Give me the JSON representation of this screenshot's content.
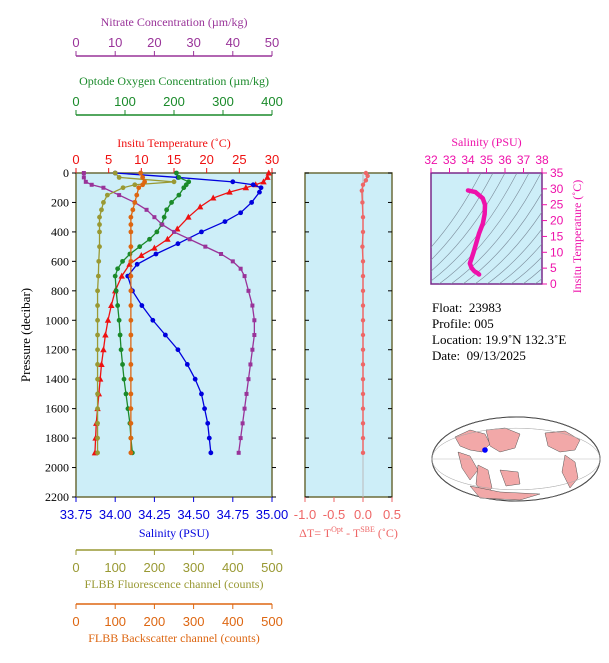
{
  "chart_data": {
    "type": "line",
    "y_axis": {
      "label": "Pressure (decibar)",
      "ylim": [
        2200,
        0
      ],
      "ticks": [
        0,
        200,
        400,
        600,
        800,
        1000,
        1200,
        1400,
        1600,
        1800,
        2000,
        2200
      ]
    },
    "axes": {
      "nitrate": {
        "label": "Nitrate Concentration (µm/kg)",
        "range": [
          0,
          50
        ],
        "ticks": [
          0,
          10,
          20,
          30,
          40,
          50
        ],
        "color": "#993399"
      },
      "oxygen": {
        "label": "Optode Oxygen Concentration (µm/kg)",
        "range": [
          0,
          400
        ],
        "ticks": [
          0,
          100,
          200,
          300,
          400
        ],
        "color": "#1a8a2a"
      },
      "temperature": {
        "label": "Insitu Temperature (˚C)",
        "range": [
          0,
          30
        ],
        "ticks": [
          0,
          5,
          10,
          15,
          20,
          25,
          30
        ],
        "color": "#ee1111"
      },
      "salinity": {
        "label": "Salinity (PSU)",
        "range": [
          33.75,
          35.0
        ],
        "ticks": [
          "33.75",
          "34.00",
          "34.25",
          "34.50",
          "34.75",
          "35.00"
        ],
        "color": "#0000dd"
      },
      "fluorescence": {
        "label": "FLBB Fluorescence channel (counts)",
        "range": [
          0,
          500
        ],
        "ticks": [
          0,
          100,
          200,
          300,
          400,
          500
        ],
        "color": "#999933"
      },
      "backscatter": {
        "label": "FLBB Backscatter channel (counts)",
        "range": [
          0,
          500
        ],
        "ticks": [
          0,
          100,
          200,
          300,
          400,
          500
        ],
        "color": "#dd6611"
      }
    },
    "series": [
      {
        "key": "temperature",
        "marker": "triangle",
        "points": [
          [
            29.5,
            0
          ],
          [
            29.3,
            30
          ],
          [
            28.7,
            60
          ],
          [
            27.5,
            80
          ],
          [
            26.0,
            100
          ],
          [
            23.5,
            130
          ],
          [
            21.0,
            170
          ],
          [
            19.0,
            230
          ],
          [
            17.2,
            300
          ],
          [
            15.5,
            380
          ],
          [
            14.0,
            450
          ],
          [
            12.0,
            510
          ],
          [
            10.0,
            560
          ],
          [
            8.2,
            620
          ],
          [
            7.0,
            700
          ],
          [
            6.0,
            800
          ],
          [
            5.4,
            900
          ],
          [
            4.9,
            1000
          ],
          [
            4.5,
            1100
          ],
          [
            4.2,
            1200
          ],
          [
            3.9,
            1300
          ],
          [
            3.7,
            1400
          ],
          [
            3.5,
            1500
          ],
          [
            3.3,
            1600
          ],
          [
            3.1,
            1700
          ],
          [
            3.0,
            1800
          ],
          [
            2.9,
            1900
          ]
        ]
      },
      {
        "key": "salinity",
        "marker": "circle",
        "points": [
          [
            34.0,
            0
          ],
          [
            34.4,
            30
          ],
          [
            34.75,
            60
          ],
          [
            34.88,
            80
          ],
          [
            34.93,
            100
          ],
          [
            34.92,
            130
          ],
          [
            34.87,
            200
          ],
          [
            34.8,
            270
          ],
          [
            34.7,
            330
          ],
          [
            34.55,
            400
          ],
          [
            34.4,
            480
          ],
          [
            34.26,
            550
          ],
          [
            34.14,
            620
          ],
          [
            34.08,
            700
          ],
          [
            34.11,
            800
          ],
          [
            34.17,
            900
          ],
          [
            34.24,
            1000
          ],
          [
            34.32,
            1100
          ],
          [
            34.4,
            1200
          ],
          [
            34.46,
            1300
          ],
          [
            34.51,
            1400
          ],
          [
            34.55,
            1500
          ],
          [
            34.57,
            1600
          ],
          [
            34.59,
            1700
          ],
          [
            34.6,
            1800
          ],
          [
            34.61,
            1900
          ]
        ]
      },
      {
        "key": "oxygen",
        "marker": "circle",
        "points": [
          [
            205,
            0
          ],
          [
            210,
            30
          ],
          [
            230,
            60
          ],
          [
            225,
            80
          ],
          [
            220,
            100
          ],
          [
            210,
            150
          ],
          [
            195,
            200
          ],
          [
            185,
            250
          ],
          [
            180,
            300
          ],
          [
            175,
            350
          ],
          [
            165,
            400
          ],
          [
            150,
            450
          ],
          [
            130,
            500
          ],
          [
            110,
            550
          ],
          [
            95,
            600
          ],
          [
            85,
            650
          ],
          [
            80,
            700
          ],
          [
            82,
            800
          ],
          [
            85,
            900
          ],
          [
            88,
            1000
          ],
          [
            90,
            1100
          ],
          [
            92,
            1200
          ],
          [
            95,
            1300
          ],
          [
            98,
            1400
          ],
          [
            102,
            1500
          ],
          [
            106,
            1600
          ],
          [
            110,
            1700
          ],
          [
            112,
            1800
          ],
          [
            115,
            1900
          ]
        ]
      },
      {
        "key": "nitrate",
        "marker": "square",
        "points": [
          [
            2,
            0
          ],
          [
            2,
            30
          ],
          [
            2.5,
            60
          ],
          [
            4,
            80
          ],
          [
            7,
            100
          ],
          [
            11,
            150
          ],
          [
            15,
            200
          ],
          [
            18,
            250
          ],
          [
            20,
            300
          ],
          [
            22,
            350
          ],
          [
            25,
            400
          ],
          [
            29,
            450
          ],
          [
            33,
            500
          ],
          [
            37,
            550
          ],
          [
            40,
            600
          ],
          [
            42,
            650
          ],
          [
            43,
            700
          ],
          [
            44,
            800
          ],
          [
            45,
            900
          ],
          [
            45.5,
            1000
          ],
          [
            45.5,
            1100
          ],
          [
            45,
            1200
          ],
          [
            44.5,
            1300
          ],
          [
            44,
            1400
          ],
          [
            43.5,
            1500
          ],
          [
            43,
            1600
          ],
          [
            42.5,
            1700
          ],
          [
            42,
            1800
          ],
          [
            41.5,
            1900
          ]
        ]
      },
      {
        "key": "fluorescence",
        "marker": "circle",
        "points": [
          [
            100,
            0
          ],
          [
            110,
            30
          ],
          [
            250,
            60
          ],
          [
            150,
            80
          ],
          [
            120,
            100
          ],
          [
            80,
            150
          ],
          [
            70,
            200
          ],
          [
            65,
            250
          ],
          [
            60,
            300
          ],
          [
            60,
            350
          ],
          [
            60,
            400
          ],
          [
            60,
            500
          ],
          [
            58,
            600
          ],
          [
            57,
            700
          ],
          [
            55,
            800
          ],
          [
            55,
            900
          ],
          [
            55,
            1000
          ],
          [
            55,
            1100
          ],
          [
            55,
            1200
          ],
          [
            55,
            1300
          ],
          [
            55,
            1400
          ],
          [
            55,
            1500
          ],
          [
            55,
            1600
          ],
          [
            55,
            1700
          ],
          [
            55,
            1800
          ],
          [
            55,
            1900
          ]
        ]
      },
      {
        "key": "backscatter",
        "marker": "circle",
        "points": [
          [
            165,
            0
          ],
          [
            170,
            30
          ],
          [
            175,
            60
          ],
          [
            170,
            80
          ],
          [
            160,
            100
          ],
          [
            155,
            150
          ],
          [
            150,
            200
          ],
          [
            145,
            250
          ],
          [
            140,
            300
          ],
          [
            140,
            350
          ],
          [
            140,
            400
          ],
          [
            140,
            500
          ],
          [
            140,
            600
          ],
          [
            140,
            700
          ],
          [
            140,
            800
          ],
          [
            140,
            900
          ],
          [
            140,
            1000
          ],
          [
            140,
            1100
          ],
          [
            140,
            1200
          ],
          [
            140,
            1300
          ],
          [
            140,
            1400
          ],
          [
            140,
            1500
          ],
          [
            140,
            1600
          ],
          [
            140,
            1700
          ],
          [
            140,
            1800
          ],
          [
            140,
            1900
          ]
        ]
      }
    ],
    "delta_t": {
      "label_prefix": "ΔT= T",
      "label_sup1": "Opt",
      "label_mid": " - T",
      "label_sup2": "SBE",
      "label_suffix": " (˚C)",
      "range": [
        -1.0,
        0.5
      ],
      "ticks": [
        "-1.0",
        "-0.5",
        "0.0",
        "0.5"
      ],
      "color": "#ee6666",
      "points": [
        [
          0.05,
          0
        ],
        [
          0.08,
          20
        ],
        [
          0.05,
          50
        ],
        [
          0.0,
          80
        ],
        [
          -0.02,
          120
        ],
        [
          -0.01,
          200
        ],
        [
          0.0,
          300
        ],
        [
          0.0,
          400
        ],
        [
          -0.01,
          500
        ],
        [
          0.0,
          600
        ],
        [
          0.0,
          700
        ],
        [
          0.0,
          800
        ],
        [
          0.0,
          900
        ],
        [
          0.0,
          1000
        ],
        [
          0.0,
          1100
        ],
        [
          0.0,
          1200
        ],
        [
          0.0,
          1300
        ],
        [
          0.0,
          1400
        ],
        [
          0.0,
          1500
        ],
        [
          0.0,
          1600
        ],
        [
          0.0,
          1700
        ],
        [
          0.0,
          1800
        ],
        [
          0.0,
          1900
        ]
      ]
    },
    "ts_diagram": {
      "title": "Salinity (PSU)",
      "xlim": [
        32,
        38
      ],
      "xticks": [
        32,
        33,
        34,
        35,
        36,
        37,
        38
      ],
      "ylabel": "Insitu Temperature (˚C)",
      "ylim": [
        0,
        35
      ],
      "yticks": [
        0,
        5,
        10,
        15,
        20,
        25,
        30,
        35
      ],
      "color": "#ee11aa",
      "points": [
        [
          34.0,
          29.5
        ],
        [
          34.4,
          29.0
        ],
        [
          34.8,
          27.0
        ],
        [
          34.92,
          25.0
        ],
        [
          34.9,
          22.0
        ],
        [
          34.8,
          19.0
        ],
        [
          34.6,
          16.0
        ],
        [
          34.5,
          14.0
        ],
        [
          34.4,
          12.0
        ],
        [
          34.3,
          10.0
        ],
        [
          34.2,
          8.2
        ],
        [
          34.1,
          6.5
        ],
        [
          34.2,
          5.0
        ],
        [
          34.35,
          4.0
        ],
        [
          34.5,
          3.5
        ],
        [
          34.6,
          3.0
        ]
      ]
    }
  },
  "info": {
    "float_label": "Float:",
    "float_value": "23983",
    "profile_label": "Profile:",
    "profile_value": "005",
    "location_label": "Location:",
    "location_value": "19.9˚N  132.3˚E",
    "date_label": "Date:",
    "date_value": "09/13/2025"
  },
  "map": {
    "marker_color": "#0000ff",
    "land_color": "#f2a8a8",
    "ocean_color": "#ffffff"
  }
}
